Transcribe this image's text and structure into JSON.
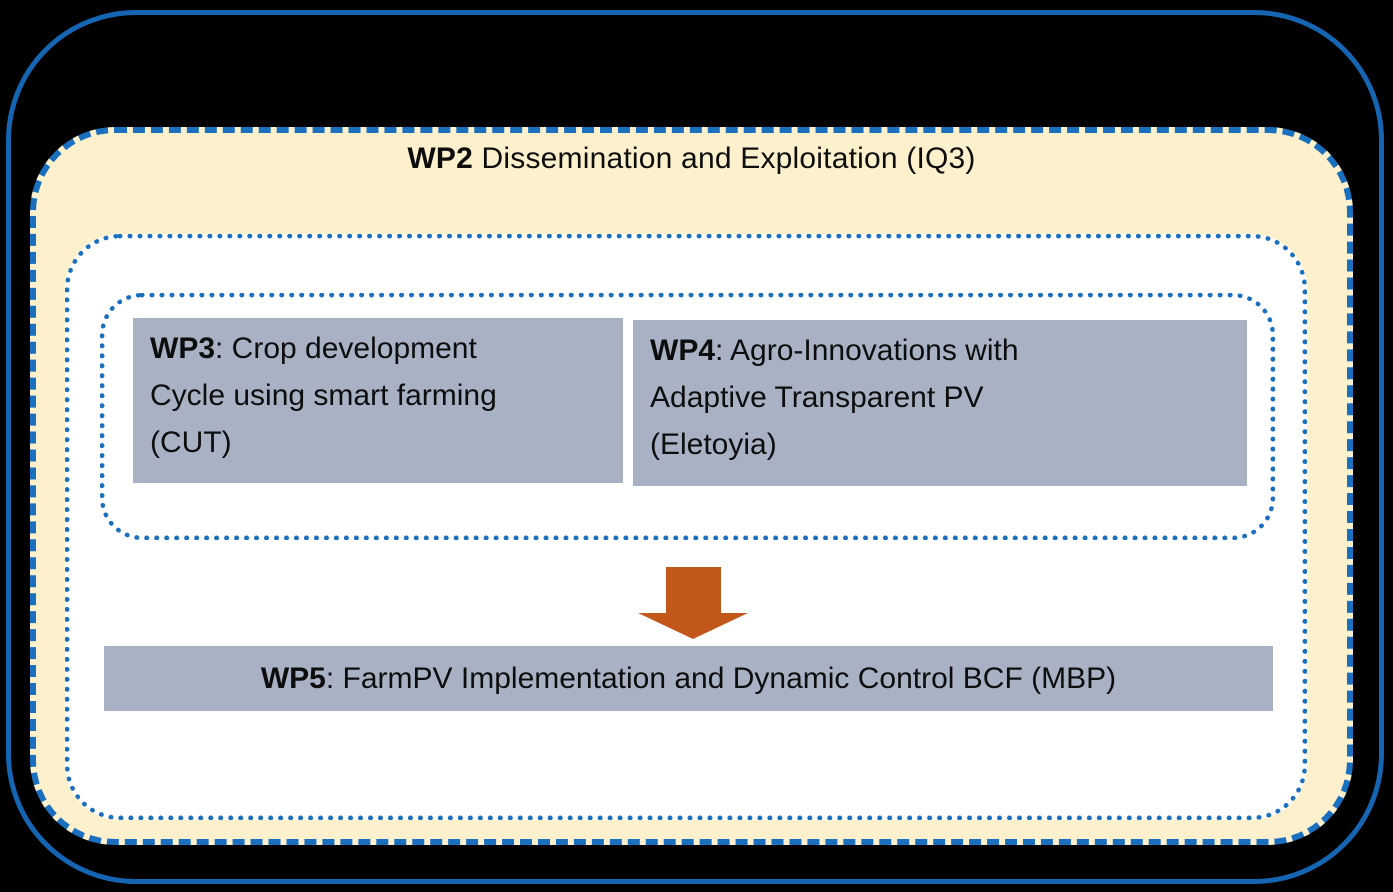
{
  "theme": {
    "bg": "#000000",
    "frame-blue": "#1565B2",
    "dash-blue": "#1B6FBF",
    "cream": "#FDF0CC",
    "panel-white": "#FFFFFF",
    "box-gray": "#A9B2C4",
    "arrow-orange": "#C2571B",
    "text": "#0D0D0D"
  },
  "diagram": {
    "wp2_header": {
      "bold": "WP2",
      "lines": [
        " Dissemination and Exploitation (IQ3)"
      ]
    },
    "boxes": {
      "wp3": {
        "bold": "WP3",
        "lines": [
          ": Crop development",
          "Cycle using smart farming",
          "(CUT)"
        ]
      },
      "wp4": {
        "bold": "WP4",
        "lines": [
          ": Agro-Innovations with",
          "Adaptive Transparent PV",
          "(Eletoyia)"
        ]
      },
      "wp5": {
        "bold": "WP5",
        "lines": [
          ": FarmPV Implementation and Dynamic Control BCF (MBP)"
        ]
      }
    },
    "arrow_icon": "down-block-arrow"
  }
}
